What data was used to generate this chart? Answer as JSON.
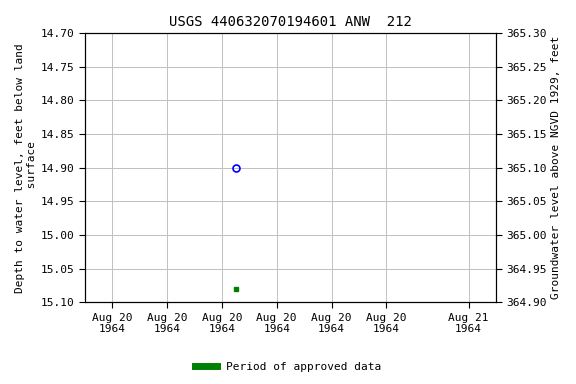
{
  "title": "USGS 440632070194601 ANW  212",
  "ylabel_left": "Depth to water level, feet below land\n surface",
  "ylabel_right": "Groundwater level above NGVD 1929, feet",
  "ylim_left": [
    15.1,
    14.7
  ],
  "ylim_right": [
    364.9,
    365.3
  ],
  "yticks_left": [
    14.7,
    14.75,
    14.8,
    14.85,
    14.9,
    14.95,
    15.0,
    15.05,
    15.1
  ],
  "yticks_right": [
    365.3,
    365.25,
    365.2,
    365.15,
    365.1,
    365.05,
    365.0,
    364.95,
    364.9
  ],
  "point_open_x_hour": 9,
  "point_open_y": 14.9,
  "point_open_color": "blue",
  "point_filled_x_hour": 9,
  "point_filled_y": 15.08,
  "point_filled_color": "green",
  "xtick_hours": [
    0,
    4,
    8,
    12,
    16,
    20,
    26
  ],
  "xtick_labels": [
    "Aug 20\n1964",
    "Aug 20\n1964",
    "Aug 20\n1964",
    "Aug 20\n1964",
    "Aug 20\n1964",
    "Aug 20\n1964",
    "Aug 21\n1964"
  ],
  "xlim_start_hour": -2,
  "xlim_end_hour": 28,
  "background_color": "#ffffff",
  "grid_color": "#c0c0c0",
  "legend_label": "Period of approved data",
  "legend_color": "green",
  "title_fontsize": 10,
  "label_fontsize": 8,
  "tick_fontsize": 8
}
